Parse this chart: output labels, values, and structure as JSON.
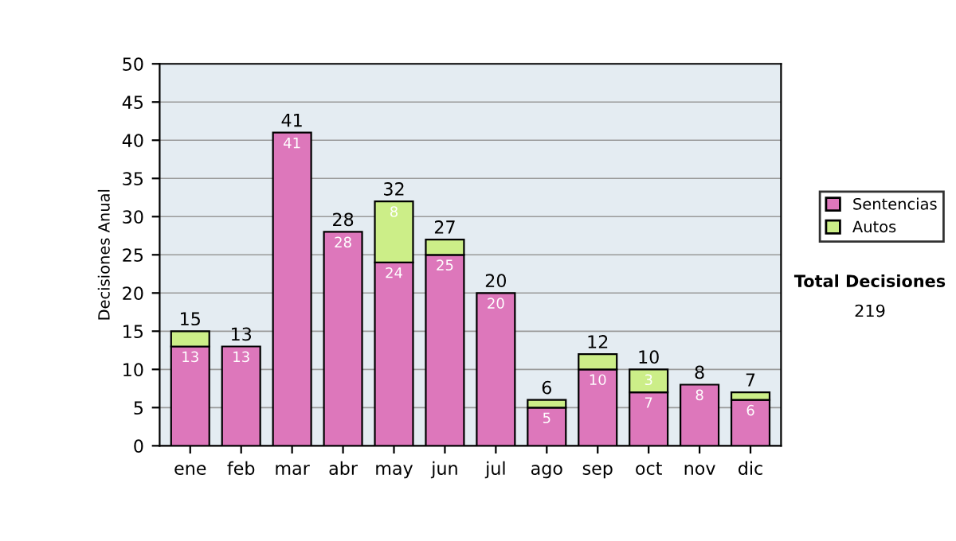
{
  "chart_data": {
    "type": "bar",
    "stacked": true,
    "ylabel": "Decisiones Anual",
    "categories": [
      "ene",
      "feb",
      "mar",
      "abr",
      "may",
      "jun",
      "jul",
      "ago",
      "sep",
      "oct",
      "nov",
      "dic"
    ],
    "series": [
      {
        "name": "Sentencias",
        "color": "#dd77bb",
        "values": [
          13,
          13,
          41,
          28,
          24,
          25,
          20,
          5,
          10,
          7,
          8,
          6
        ],
        "value_labels": [
          "13",
          "13",
          "41",
          "28",
          "24",
          "25",
          "20",
          "5",
          "10",
          "7",
          "8",
          "6"
        ]
      },
      {
        "name": "Autos",
        "color": "#ccee88",
        "values": [
          2,
          null,
          null,
          null,
          8,
          2,
          null,
          1,
          2,
          3,
          null,
          1
        ],
        "value_labels": [
          null,
          null,
          null,
          null,
          "8",
          null,
          null,
          null,
          null,
          "3",
          null,
          null
        ]
      }
    ],
    "totals": [
      "15",
      "13",
      "41",
      "28",
      "32",
      "27",
      "20",
      "6",
      "12",
      "10",
      "8",
      "7"
    ],
    "ylim": [
      0,
      50
    ],
    "yticks": [
      0,
      5,
      10,
      15,
      20,
      25,
      30,
      35,
      40,
      45,
      50
    ],
    "grid": "y",
    "legend": "right",
    "annotations": [
      "Total Decisiones",
      "219"
    ]
  }
}
